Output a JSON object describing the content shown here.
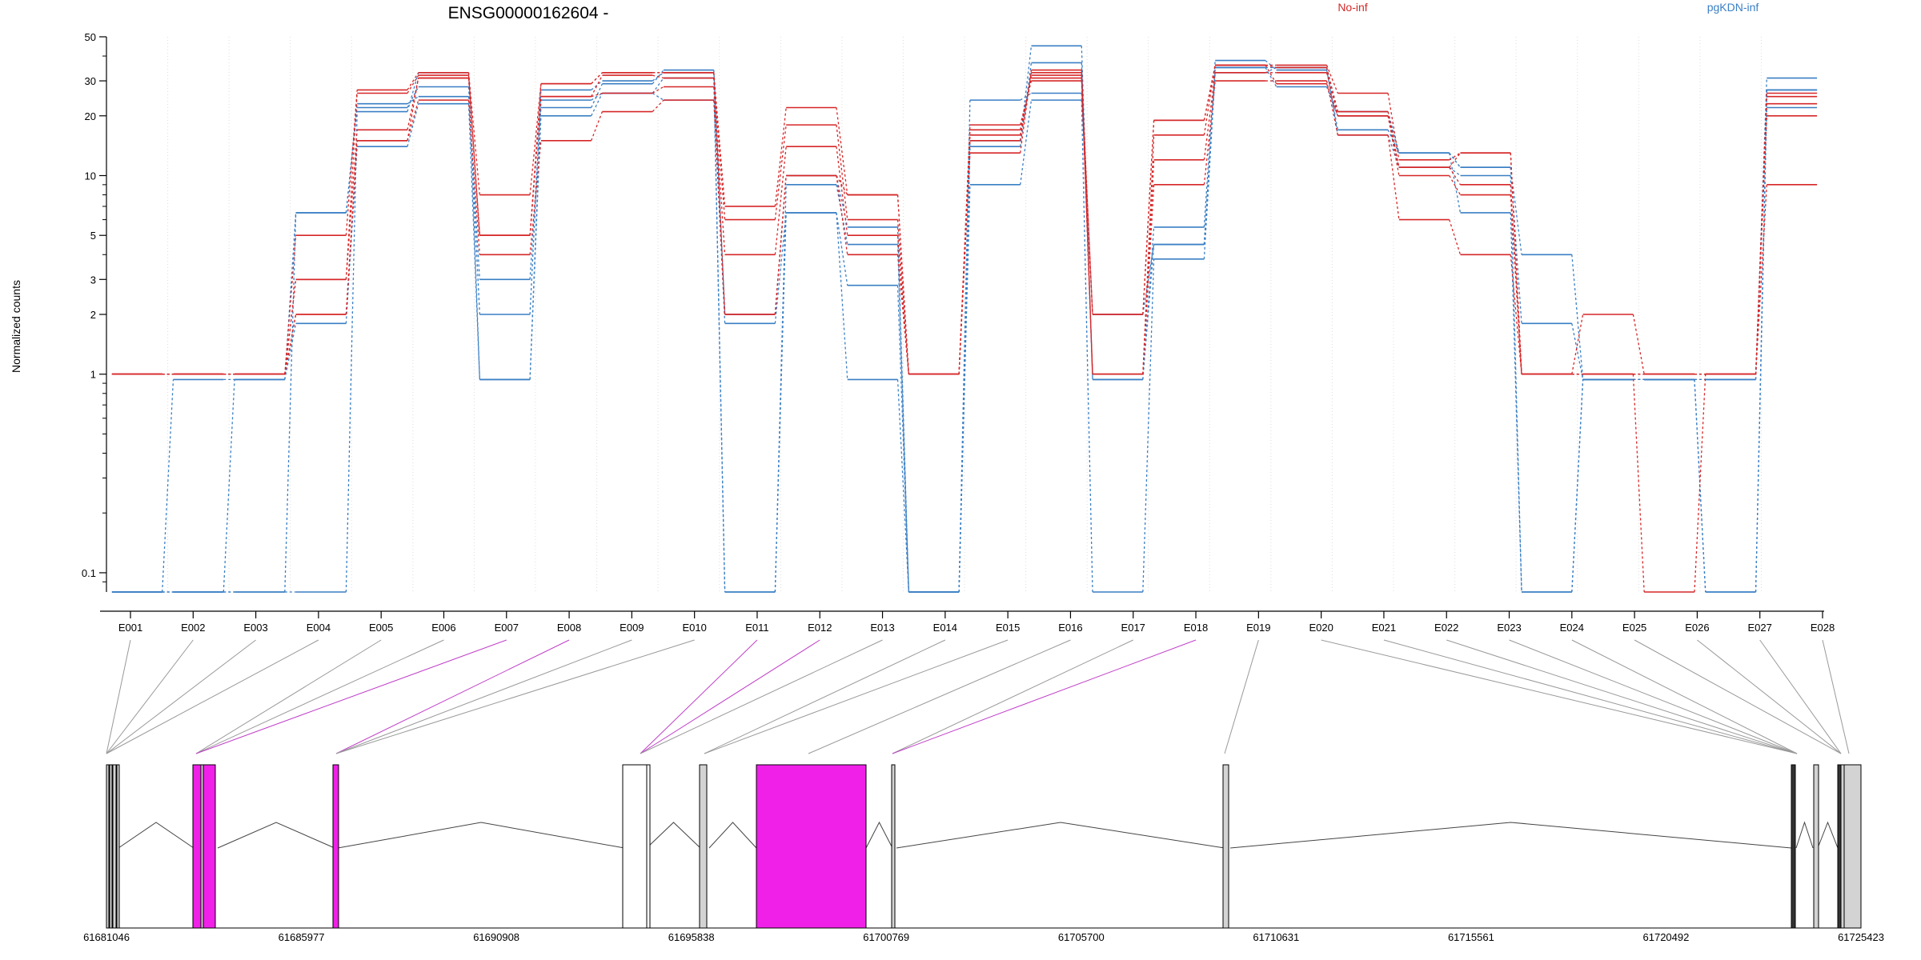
{
  "chart_data": {
    "type": "line",
    "title": "ENSG00000162604 -",
    "ylabel": "Normalized counts",
    "xlabel": "",
    "y_scale": "log",
    "ylim": [
      0.08,
      50
    ],
    "y_ticks": [
      "0.1",
      "1",
      "2",
      "3",
      "5",
      "10",
      "20",
      "30",
      "50"
    ],
    "y_tick_values": [
      0.1,
      1,
      2,
      3,
      5,
      10,
      20,
      30,
      50
    ],
    "grid": "vertical dotted lines at exon boundaries",
    "legend_placement": "top",
    "legend": [
      {
        "name": "No-inf",
        "color": "#d62728"
      },
      {
        "name": "pgKDN-inf",
        "color": "#3a7fc4"
      }
    ],
    "categories": [
      "E001",
      "E002",
      "E003",
      "E004",
      "E005",
      "E006",
      "E007",
      "E008",
      "E009",
      "E010",
      "E011",
      "E012",
      "E013",
      "E014",
      "E015",
      "E016",
      "E017",
      "E018",
      "E019",
      "E020",
      "E021",
      "E022",
      "E023",
      "E024",
      "E025",
      "E026",
      "E027",
      "E028"
    ],
    "series": [
      {
        "name": "No-inf",
        "color": "#d62728",
        "values": [
          1,
          1,
          1,
          5,
          27,
          33,
          8,
          29,
          33,
          33,
          7,
          22,
          8,
          1,
          17,
          31,
          2,
          19,
          36,
          36,
          26,
          12,
          13,
          1,
          2,
          1,
          1,
          26
        ]
      },
      {
        "name": "No-inf",
        "color": "#d62728",
        "values": [
          1,
          1,
          1,
          3,
          26,
          32,
          5,
          25,
          32,
          31,
          6,
          18,
          6,
          1,
          15,
          33,
          1,
          16,
          36,
          35,
          21,
          11,
          9,
          1,
          1,
          1,
          1,
          25
        ]
      },
      {
        "name": "No-inf",
        "color": "#d62728",
        "values": [
          1,
          1,
          1,
          3,
          17,
          31,
          5,
          25,
          26,
          28,
          4,
          14,
          5,
          1,
          13,
          34,
          1,
          12,
          33,
          33,
          20,
          10,
          8,
          1,
          1,
          0.08,
          1,
          23
        ]
      },
      {
        "name": "No-inf",
        "color": "#d62728",
        "values": [
          1,
          1,
          1,
          2,
          15,
          24,
          4,
          15,
          21,
          24,
          2,
          10,
          4,
          1,
          18,
          30,
          1,
          9,
          30,
          30,
          16,
          6,
          4,
          1,
          1,
          1,
          1,
          20
        ]
      },
      {
        "name": "No-inf",
        "color": "#d62728",
        "values": [
          1,
          1,
          1,
          2,
          15,
          31,
          5,
          29,
          33,
          33,
          2,
          10,
          8,
          1,
          16,
          32,
          2,
          19,
          36,
          29,
          20,
          11,
          13,
          1,
          1,
          1,
          1,
          9
        ]
      },
      {
        "name": "pgKDN-inf",
        "color": "#3a7fc4",
        "values": [
          0.08,
          0.08,
          0.08,
          6.5,
          23,
          25,
          3,
          22,
          29,
          34,
          2,
          10,
          5.5,
          0.08,
          24,
          26,
          2,
          4.5,
          35,
          35,
          21,
          13,
          11,
          4,
          0.94,
          0.94,
          0.94,
          31
        ]
      },
      {
        "name": "pgKDN-inf",
        "color": "#3a7fc4",
        "values": [
          0.08,
          0.94,
          0.94,
          6.5,
          22,
          28,
          2,
          27,
          30,
          33,
          0.08,
          9,
          4.5,
          0.08,
          15,
          45,
          0.94,
          4.5,
          35,
          28,
          20,
          13,
          11,
          1.8,
          0.94,
          0.94,
          0.94,
          27
        ]
      },
      {
        "name": "pgKDN-inf",
        "color": "#3a7fc4",
        "values": [
          0.08,
          0.08,
          0.94,
          1.8,
          14,
          23,
          0.94,
          20,
          26,
          24,
          1.8,
          6.5,
          2.8,
          0.08,
          9,
          24,
          0.08,
          3.8,
          33,
          35,
          16,
          11,
          10,
          0.08,
          0.94,
          0.94,
          0.08,
          22
        ]
      },
      {
        "name": "pgKDN-inf",
        "color": "#3a7fc4",
        "values": [
          0.08,
          0.08,
          0.08,
          0.08,
          21,
          33,
          0.94,
          24,
          26,
          31,
          0.08,
          6.5,
          0.94,
          0.08,
          14,
          37,
          0.94,
          5.5,
          38,
          34,
          17,
          13,
          6.5,
          0.08,
          0.94,
          0.94,
          0.08,
          27
        ]
      }
    ],
    "annotation_track": {
      "axis_labels": [
        "61681046",
        "61685977",
        "61690908",
        "61695838",
        "61700769",
        "61705700",
        "61710631",
        "61715561",
        "61720492",
        "61725423"
      ],
      "highlight_color": "#f020e8",
      "feature_color": "#d3d3d3"
    }
  }
}
